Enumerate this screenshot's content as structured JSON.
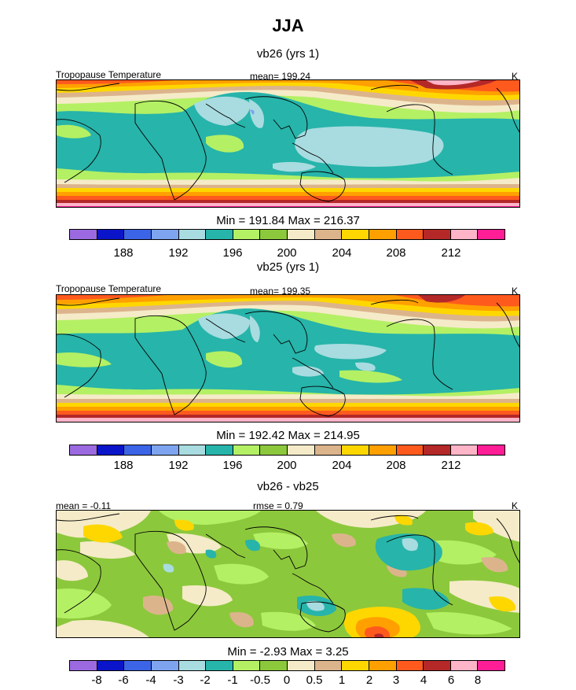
{
  "title": "JJA",
  "colors": {
    "temp_palette": [
      "#9b6ae0",
      "#0a14c8",
      "#3c64e6",
      "#7ea4f0",
      "#a8dce0",
      "#27b4aa",
      "#b4f064",
      "#8cc83c",
      "#f5ebc8",
      "#dcb48c",
      "#ffd700",
      "#ffa000",
      "#ff5a1e",
      "#b42828",
      "#ffb4c8",
      "#ff1e96"
    ],
    "diff_palette": [
      "#9b6ae0",
      "#0a14c8",
      "#3c64e6",
      "#7ea4f0",
      "#a8dce0",
      "#27b4aa",
      "#b4f064",
      "#8cc83c",
      "#f5ebc8",
      "#dcb48c",
      "#ffd700",
      "#ffa000",
      "#ff5a1e",
      "#b42828",
      "#ffb4c8",
      "#ff1e96"
    ]
  },
  "panels": [
    {
      "title": "vb26 (yrs 1)",
      "left_label": "Tropopause Temperature",
      "center_label": "mean= 199.24",
      "right_label": "K",
      "stats": "Min = 191.84 Max = 216.37",
      "colorbar_ticks": [
        "188",
        "192",
        "196",
        "200",
        "204",
        "208",
        "212"
      ]
    },
    {
      "title": "vb25 (yrs 1)",
      "left_label": "Tropopause Temperature",
      "center_label": "mean= 199.35",
      "right_label": "K",
      "stats": "Min = 192.42 Max = 214.95",
      "colorbar_ticks": [
        "188",
        "192",
        "196",
        "200",
        "204",
        "208",
        "212"
      ]
    },
    {
      "title": "vb26 - vb25",
      "left_label": "mean =  -0.11",
      "center_label": "rmse =   0.79",
      "right_label": "K",
      "stats": "Min =  -2.93 Max =   3.25",
      "colorbar_ticks": [
        "-8",
        "-6",
        "-4",
        "-3",
        "-2",
        "-1",
        "-0.5",
        "0",
        "0.5",
        "1",
        "2",
        "3",
        "4",
        "6",
        "8"
      ]
    }
  ],
  "chart_data": [
    {
      "type": "heatmap",
      "title": "vb26 (yrs 1)",
      "variable": "Tropopause Temperature",
      "units": "K",
      "mean": 199.24,
      "min": 191.84,
      "max": 216.37,
      "levels": [
        188,
        190,
        192,
        194,
        196,
        198,
        200,
        202,
        204,
        206,
        208,
        210,
        212,
        214,
        216
      ]
    },
    {
      "type": "heatmap",
      "title": "vb25 (yrs 1)",
      "variable": "Tropopause Temperature",
      "units": "K",
      "mean": 199.35,
      "min": 192.42,
      "max": 214.95,
      "levels": [
        188,
        190,
        192,
        194,
        196,
        198,
        200,
        202,
        204,
        206,
        208,
        210,
        212,
        214,
        216
      ]
    },
    {
      "type": "heatmap",
      "title": "vb26 - vb25",
      "units": "K",
      "mean": -0.11,
      "rmse": 0.79,
      "min": -2.93,
      "max": 3.25,
      "levels": [
        -8,
        -6,
        -4,
        -3,
        -2,
        -1,
        -0.5,
        0,
        0.5,
        1,
        2,
        3,
        4,
        6,
        8
      ]
    }
  ]
}
